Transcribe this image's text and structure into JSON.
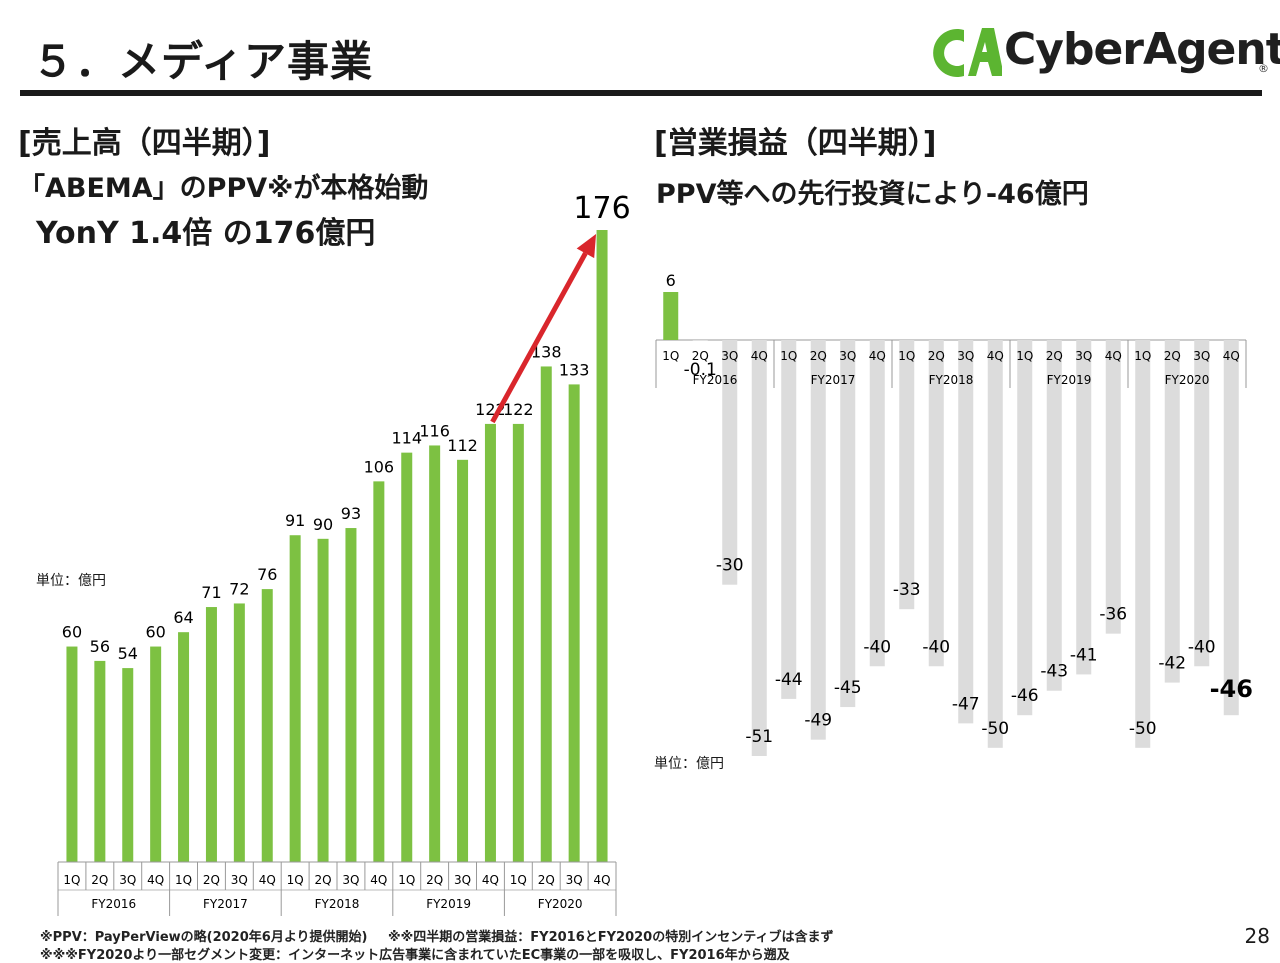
{
  "header": {
    "title": "５．メディア事業",
    "logo_text": "CyberAgent",
    "logo_mark": "CA",
    "logo_reg": "®",
    "brand_green": "#5cb531",
    "logo_icon": "cyberagent-logo-icon"
  },
  "left_panel": {
    "heading": "[売上高（四半期）]",
    "sub_line1": "「ABEMA」のPPV※が本格始動",
    "sub_line2": "YonY 1.4倍 の176億円",
    "unit": "単位：億円",
    "highlight_label": "176"
  },
  "right_panel": {
    "heading": "[営業損益（四半期）]",
    "sub_line1": "PPV等への先行投資により-46億円",
    "unit": "単位：億円",
    "highlight_label": "-46"
  },
  "chart_data": [
    {
      "type": "bar",
      "title": "[売上高（四半期）]",
      "unit": "単位：億円",
      "categories": [
        "1Q",
        "2Q",
        "3Q",
        "4Q",
        "1Q",
        "2Q",
        "3Q",
        "4Q",
        "1Q",
        "2Q",
        "3Q",
        "4Q",
        "1Q",
        "2Q",
        "3Q",
        "4Q",
        "1Q",
        "2Q",
        "3Q",
        "4Q"
      ],
      "groups": [
        "FY2016",
        "FY2017",
        "FY2018",
        "FY2019",
        "FY2020"
      ],
      "values": [
        60,
        56,
        54,
        60,
        64,
        71,
        72,
        76,
        91,
        90,
        93,
        106,
        114,
        116,
        112,
        122,
        122,
        138,
        133,
        176
      ],
      "labels": [
        "60",
        "56",
        "54",
        "60",
        "64",
        "71",
        "72",
        "76",
        "91",
        "90",
        "93",
        "106",
        "114",
        "116",
        "112",
        "122",
        "122",
        "138",
        "133",
        "176"
      ],
      "ylim": [
        0,
        180
      ],
      "bar_color": "#7dc142",
      "arrow_color": "#d9262c",
      "annotation": "arrow from FY2019 4Q to FY2020 4Q"
    },
    {
      "type": "bar",
      "title": "[営業損益（四半期）]",
      "unit": "単位：億円",
      "categories": [
        "1Q",
        "2Q",
        "3Q",
        "4Q",
        "1Q",
        "2Q",
        "3Q",
        "4Q",
        "1Q",
        "2Q",
        "3Q",
        "4Q",
        "1Q",
        "2Q",
        "3Q",
        "4Q",
        "1Q",
        "2Q",
        "3Q",
        "4Q"
      ],
      "groups": [
        "FY2016",
        "FY2017",
        "FY2018",
        "FY2019",
        "FY2020"
      ],
      "values": [
        6,
        -0.1,
        -30,
        -51,
        -44,
        -49,
        -45,
        -40,
        -33,
        -40,
        -47,
        -50,
        -46,
        -43,
        -41,
        -36,
        -50,
        -42,
        -40,
        -46
      ],
      "labels": [
        "6",
        "-0.1",
        "-30",
        "-51",
        "-44",
        "-49",
        "-45",
        "-40",
        "-33",
        "-40",
        "-47",
        "-50",
        "-46",
        "-43",
        "-41",
        "-36",
        "-50",
        "-42",
        "-40",
        "-46"
      ],
      "ylim": [
        -52,
        8
      ],
      "positive_color": "#7dc142",
      "negative_color": "#dcdcdc"
    }
  ],
  "footnotes": {
    "line1a": "※PPV：PayPerViewの略(2020年6月より提供開始)",
    "line1b": "※※四半期の営業損益：FY2016とFY2020の特別インセンティブは含まず",
    "line2": "※※※FY2020より一部セグメント変更：インターネット広告事業に含まれていたEC事業の一部を吸収し、FY2016年から遡及"
  },
  "page_number": "28"
}
